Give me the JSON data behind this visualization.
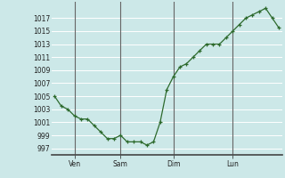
{
  "x_values": [
    0,
    1,
    2,
    3,
    4,
    5,
    6,
    7,
    8,
    9,
    10,
    11,
    12,
    13,
    14,
    15,
    16,
    17,
    18,
    19,
    20,
    21,
    22,
    23,
    24,
    25,
    26,
    27,
    28,
    29,
    30,
    31,
    32,
    33,
    34
  ],
  "y_values": [
    1005,
    1003.5,
    1003,
    1002,
    1001.5,
    1001.5,
    1000.5,
    999.5,
    998.5,
    998.5,
    999,
    998,
    998,
    998,
    997.5,
    998,
    1001,
    1006,
    1008,
    1009.5,
    1010,
    1011,
    1012,
    1013,
    1013,
    1013,
    1014,
    1015,
    1016,
    1017,
    1017.5,
    1018,
    1018.5,
    1017,
    1015.5
  ],
  "x_tick_positions": [
    3,
    10,
    18,
    27
  ],
  "x_tick_labels": [
    "Ven",
    "Sam",
    "Dim",
    "Lun"
  ],
  "x_vlines": [
    3,
    10,
    18,
    27
  ],
  "y_ticks": [
    997,
    999,
    1001,
    1003,
    1005,
    1007,
    1009,
    1011,
    1013,
    1015,
    1017
  ],
  "ylim": [
    996.0,
    1019.5
  ],
  "xlim": [
    -0.5,
    34.5
  ],
  "line_color": "#2d6a2d",
  "marker_color": "#2d6a2d",
  "bg_color": "#cce8e8",
  "grid_color": "#ffffff",
  "vline_color": "#666666"
}
